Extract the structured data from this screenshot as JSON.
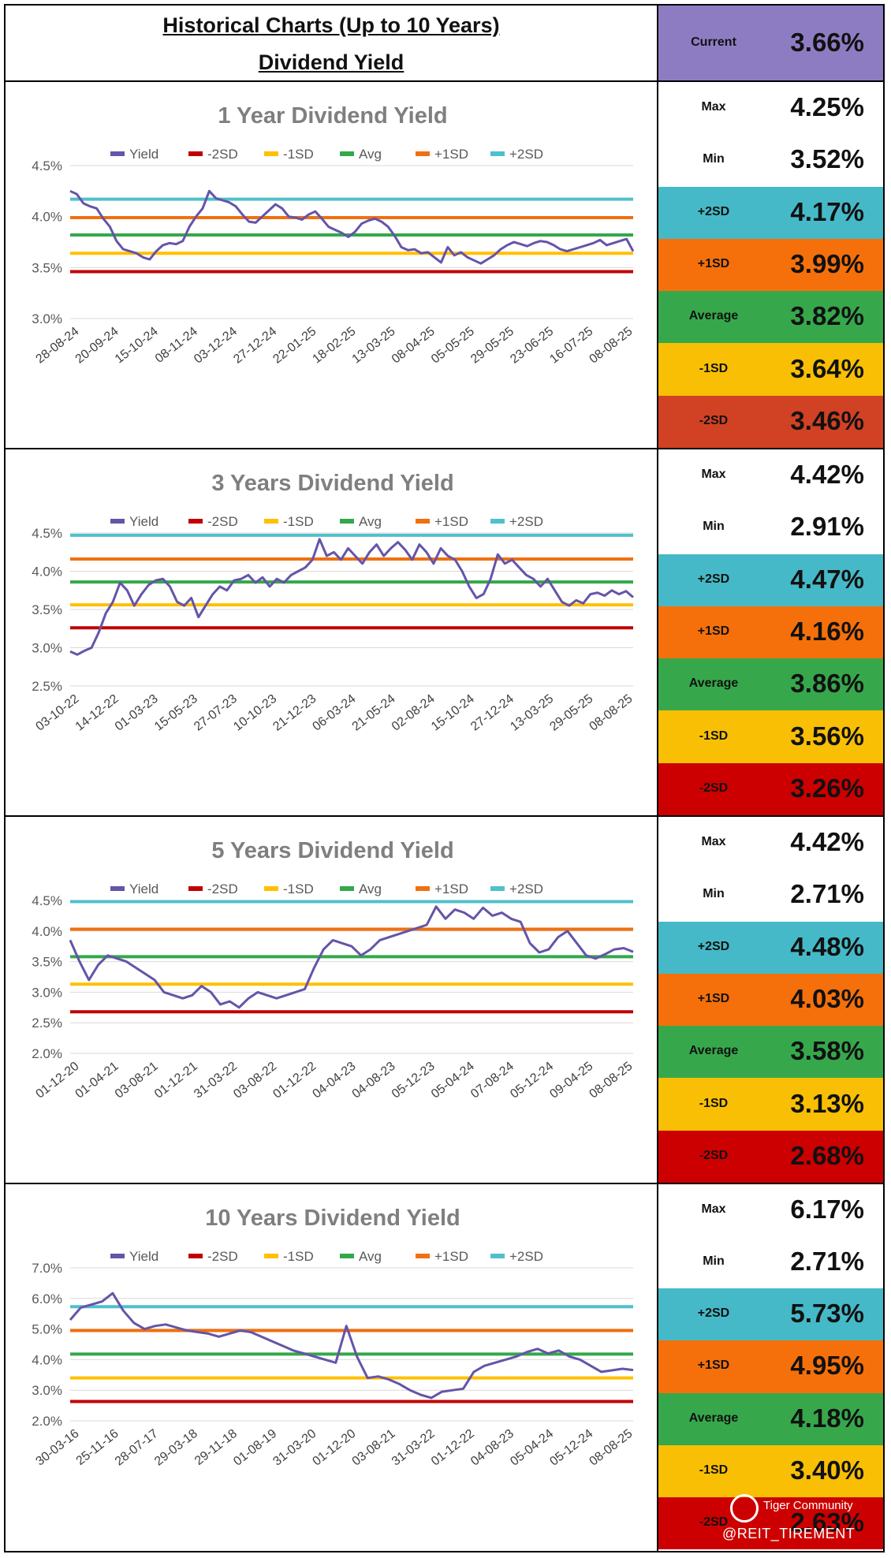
{
  "header": {
    "title": "Historical Charts (Up to 10 Years)",
    "subtitle": "Dividend Yield",
    "current_label": "Current",
    "current_value": "3.66%",
    "current_color": "#8e7cc3"
  },
  "legend_labels": [
    "Yield",
    "-2SD",
    "-1SD",
    "Avg",
    "+1SD",
    "+2SD"
  ],
  "colors": {
    "yield": "#6554a8",
    "minus2": "#c00000",
    "minus1": "#ffc000",
    "avg": "#33a84a",
    "plus1": "#f07010",
    "plus2": "#4fc0cc"
  },
  "stat_labels": [
    "Max",
    "Min",
    "+2SD",
    "+1SD",
    "Average",
    "-1SD",
    "-2SD"
  ],
  "sections": [
    {
      "stats": [
        "4.25%",
        "3.52%",
        "4.17%",
        "3.99%",
        "3.82%",
        "3.64%",
        "3.46%"
      ],
      "stat_colors": [
        "#ffffff",
        "#ffffff",
        "#45b9c8",
        "#f5700a",
        "#36a84b",
        "#f8bf04",
        "#d14124"
      ]
    },
    {
      "stats": [
        "4.42%",
        "2.91%",
        "4.47%",
        "4.16%",
        "3.86%",
        "3.56%",
        "3.26%"
      ],
      "stat_colors": [
        "#ffffff",
        "#ffffff",
        "#45b9c8",
        "#f5700a",
        "#36a84b",
        "#f8bf04",
        "#cc0000"
      ]
    },
    {
      "stats": [
        "4.42%",
        "2.71%",
        "4.48%",
        "4.03%",
        "3.58%",
        "3.13%",
        "2.68%"
      ],
      "stat_colors": [
        "#ffffff",
        "#ffffff",
        "#45b9c8",
        "#f5700a",
        "#36a84b",
        "#f8bf04",
        "#cc0000"
      ]
    },
    {
      "stats": [
        "6.17%",
        "2.71%",
        "5.73%",
        "4.95%",
        "4.18%",
        "3.40%",
        "2.63%"
      ],
      "stat_colors": [
        "#ffffff",
        "#ffffff",
        "#45b9c8",
        "#f5700a",
        "#36a84b",
        "#f8bf04",
        "#cc0000"
      ]
    }
  ],
  "watermark": {
    "brand": "Tiger Community",
    "handle": "@REIT_TIREMENT"
  },
  "chart_data": [
    {
      "type": "line",
      "title": "1 Year Dividend Yield",
      "legend": [
        "Yield",
        "-2SD",
        "-1SD",
        "Avg",
        "+1SD",
        "+2SD"
      ],
      "legend_position": "top",
      "yticks": [
        "4.5%",
        "4.0%",
        "3.5%",
        "3.0%"
      ],
      "ylim": [
        3.0,
        4.5
      ],
      "grid": true,
      "xticks": [
        "28-08-24",
        "20-09-24",
        "15-10-24",
        "08-11-24",
        "03-12-24",
        "27-12-24",
        "22-01-25",
        "18-02-25",
        "13-03-25",
        "08-04-25",
        "05-05-25",
        "29-05-25",
        "23-06-25",
        "16-07-25",
        "08-08-25"
      ],
      "hlines": [
        {
          "name": "-2SD",
          "value": 3.46
        },
        {
          "name": "-1SD",
          "value": 3.64
        },
        {
          "name": "Avg",
          "value": 3.82
        },
        {
          "name": "+1SD",
          "value": 3.99
        },
        {
          "name": "+2SD",
          "value": 4.17
        }
      ],
      "series": [
        {
          "name": "Yield",
          "values": [
            4.25,
            4.22,
            4.13,
            4.1,
            4.08,
            3.98,
            3.9,
            3.76,
            3.68,
            3.66,
            3.64,
            3.6,
            3.58,
            3.66,
            3.72,
            3.74,
            3.73,
            3.76,
            3.9,
            4.0,
            4.08,
            4.25,
            4.18,
            4.16,
            4.14,
            4.1,
            4.02,
            3.95,
            3.94,
            4.0,
            4.06,
            4.12,
            4.08,
            4.0,
            3.99,
            3.97,
            4.02,
            4.05,
            3.98,
            3.9,
            3.87,
            3.84,
            3.8,
            3.85,
            3.93,
            3.96,
            3.98,
            3.95,
            3.9,
            3.81,
            3.7,
            3.67,
            3.68,
            3.64,
            3.65,
            3.6,
            3.55,
            3.7,
            3.62,
            3.65,
            3.6,
            3.57,
            3.54,
            3.58,
            3.62,
            3.68,
            3.72,
            3.75,
            3.73,
            3.71,
            3.74,
            3.76,
            3.75,
            3.72,
            3.68,
            3.66,
            3.68,
            3.7,
            3.72,
            3.74,
            3.77,
            3.72,
            3.74,
            3.76,
            3.78,
            3.66
          ]
        }
      ]
    },
    {
      "type": "line",
      "title": "3 Years Dividend Yield",
      "legend": [
        "Yield",
        "-2SD",
        "-1SD",
        "Avg",
        "+1SD",
        "+2SD"
      ],
      "legend_position": "top",
      "yticks": [
        "4.5%",
        "4.0%",
        "3.5%",
        "3.0%",
        "2.5%"
      ],
      "ylim": [
        2.5,
        4.5
      ],
      "grid": true,
      "xticks": [
        "03-10-22",
        "14-12-22",
        "01-03-23",
        "15-05-23",
        "27-07-23",
        "10-10-23",
        "21-12-23",
        "06-03-24",
        "21-05-24",
        "02-08-24",
        "15-10-24",
        "27-12-24",
        "13-03-25",
        "29-05-25",
        "08-08-25"
      ],
      "hlines": [
        {
          "name": "-2SD",
          "value": 3.26
        },
        {
          "name": "-1SD",
          "value": 3.56
        },
        {
          "name": "Avg",
          "value": 3.86
        },
        {
          "name": "+1SD",
          "value": 4.16
        },
        {
          "name": "+2SD",
          "value": 4.47
        }
      ],
      "series": [
        {
          "name": "Yield",
          "values": [
            2.95,
            2.91,
            2.96,
            3.0,
            3.2,
            3.45,
            3.6,
            3.85,
            3.75,
            3.55,
            3.7,
            3.82,
            3.88,
            3.9,
            3.8,
            3.6,
            3.55,
            3.65,
            3.4,
            3.55,
            3.7,
            3.8,
            3.75,
            3.88,
            3.9,
            3.95,
            3.85,
            3.92,
            3.8,
            3.9,
            3.85,
            3.95,
            4.0,
            4.05,
            4.15,
            4.42,
            4.2,
            4.25,
            4.15,
            4.3,
            4.2,
            4.1,
            4.25,
            4.35,
            4.2,
            4.3,
            4.38,
            4.28,
            4.15,
            4.35,
            4.25,
            4.1,
            4.3,
            4.2,
            4.15,
            4.0,
            3.8,
            3.65,
            3.7,
            3.9,
            4.22,
            4.1,
            4.15,
            4.05,
            3.95,
            3.9,
            3.8,
            3.9,
            3.75,
            3.6,
            3.55,
            3.62,
            3.58,
            3.7,
            3.72,
            3.68,
            3.75,
            3.7,
            3.74,
            3.66
          ]
        }
      ]
    },
    {
      "type": "line",
      "title": "5 Years Dividend Yield",
      "legend": [
        "Yield",
        "-2SD",
        "-1SD",
        "Avg",
        "+1SD",
        "+2SD"
      ],
      "legend_position": "top",
      "yticks": [
        "4.5%",
        "4.0%",
        "3.5%",
        "3.0%",
        "2.5%",
        "2.0%"
      ],
      "ylim": [
        2.0,
        4.5
      ],
      "grid": true,
      "xticks": [
        "01-12-20",
        "01-04-21",
        "03-08-21",
        "01-12-21",
        "31-03-22",
        "03-08-22",
        "01-12-22",
        "04-04-23",
        "04-08-23",
        "05-12-23",
        "05-04-24",
        "07-08-24",
        "05-12-24",
        "09-04-25",
        "08-08-25"
      ],
      "hlines": [
        {
          "name": "-2SD",
          "value": 2.68
        },
        {
          "name": "-1SD",
          "value": 3.13
        },
        {
          "name": "Avg",
          "value": 3.58
        },
        {
          "name": "+1SD",
          "value": 4.03
        },
        {
          "name": "+2SD",
          "value": 4.48
        }
      ],
      "series": [
        {
          "name": "Yield",
          "values": [
            3.85,
            3.5,
            3.2,
            3.45,
            3.6,
            3.55,
            3.5,
            3.4,
            3.3,
            3.2,
            3.0,
            2.95,
            2.9,
            2.95,
            3.1,
            3.0,
            2.8,
            2.85,
            2.75,
            2.9,
            3.0,
            2.95,
            2.9,
            2.95,
            3.0,
            3.05,
            3.4,
            3.7,
            3.85,
            3.8,
            3.75,
            3.6,
            3.7,
            3.85,
            3.9,
            3.95,
            4.0,
            4.05,
            4.1,
            4.4,
            4.2,
            4.35,
            4.3,
            4.2,
            4.38,
            4.25,
            4.3,
            4.2,
            4.15,
            3.8,
            3.65,
            3.7,
            3.9,
            4.0,
            3.8,
            3.6,
            3.55,
            3.62,
            3.7,
            3.72,
            3.66
          ]
        }
      ]
    },
    {
      "type": "line",
      "title": "10 Years Dividend Yield",
      "legend": [
        "Yield",
        "-2SD",
        "-1SD",
        "Avg",
        "+1SD",
        "+2SD"
      ],
      "legend_position": "top",
      "yticks": [
        "7.0%",
        "6.0%",
        "5.0%",
        "4.0%",
        "3.0%",
        "2.0%"
      ],
      "ylim": [
        2.0,
        7.0
      ],
      "grid": true,
      "xticks": [
        "30-03-16",
        "25-11-16",
        "28-07-17",
        "29-03-18",
        "29-11-18",
        "01-08-19",
        "31-03-20",
        "01-12-20",
        "03-08-21",
        "31-03-22",
        "01-12-22",
        "04-08-23",
        "05-04-24",
        "05-12-24",
        "08-08-25"
      ],
      "hlines": [
        {
          "name": "-2SD",
          "value": 2.63
        },
        {
          "name": "-1SD",
          "value": 3.4
        },
        {
          "name": "Avg",
          "value": 4.18
        },
        {
          "name": "+1SD",
          "value": 4.95
        },
        {
          "name": "+2SD",
          "value": 5.73
        }
      ],
      "series": [
        {
          "name": "Yield",
          "values": [
            5.3,
            5.7,
            5.8,
            5.9,
            6.17,
            5.6,
            5.2,
            5.0,
            5.1,
            5.15,
            5.05,
            4.95,
            4.9,
            4.85,
            4.75,
            4.85,
            4.95,
            4.9,
            4.75,
            4.6,
            4.45,
            4.3,
            4.2,
            4.1,
            4.0,
            3.9,
            5.1,
            4.1,
            3.4,
            3.45,
            3.35,
            3.2,
            3.0,
            2.85,
            2.75,
            2.95,
            3.0,
            3.05,
            3.6,
            3.8,
            3.9,
            4.0,
            4.1,
            4.25,
            4.35,
            4.2,
            4.3,
            4.1,
            4.0,
            3.8,
            3.6,
            3.65,
            3.7,
            3.66
          ]
        }
      ]
    }
  ]
}
